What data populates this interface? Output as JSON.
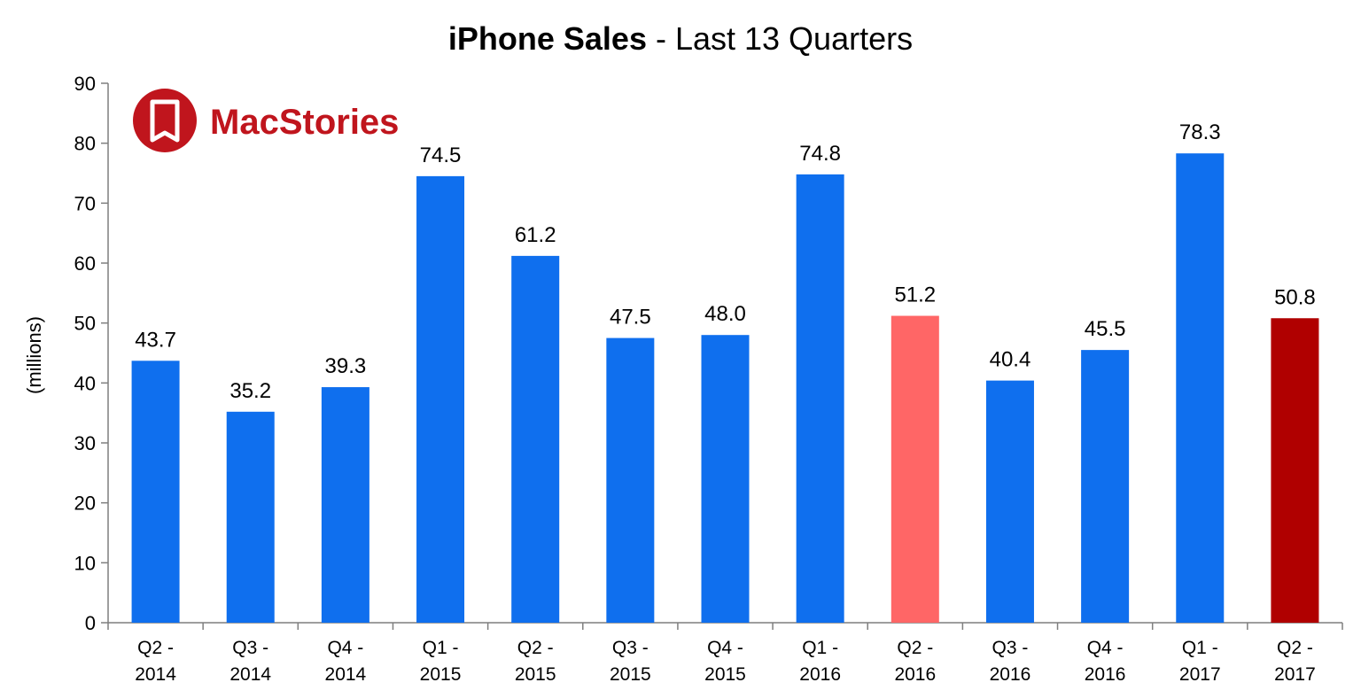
{
  "chart_data": {
    "type": "bar",
    "title_bold": "iPhone Sales",
    "title_rest": " - Last 13 Quarters",
    "ylabel": "(millions)",
    "xlabel": "",
    "ylim": [
      0,
      90
    ],
    "yticks": [
      0,
      10,
      20,
      30,
      40,
      50,
      60,
      70,
      80,
      90
    ],
    "grid": false,
    "categories": [
      [
        "Q2 -",
        "2014"
      ],
      [
        "Q3 -",
        "2014"
      ],
      [
        "Q4 -",
        "2014"
      ],
      [
        "Q1 -",
        "2015"
      ],
      [
        "Q2 -",
        "2015"
      ],
      [
        "Q3 -",
        "2015"
      ],
      [
        "Q4 -",
        "2015"
      ],
      [
        "Q1 -",
        "2016"
      ],
      [
        "Q2 -",
        "2016"
      ],
      [
        "Q3 -",
        "2016"
      ],
      [
        "Q4 -",
        "2016"
      ],
      [
        "Q1 -",
        "2017"
      ],
      [
        "Q2 -",
        "2017"
      ]
    ],
    "values": [
      43.7,
      35.2,
      39.3,
      74.5,
      61.2,
      47.5,
      48.0,
      74.8,
      51.2,
      40.4,
      45.5,
      78.3,
      50.8
    ],
    "value_labels": [
      "43.7",
      "35.2",
      "39.3",
      "74.5",
      "61.2",
      "47.5",
      "48.0",
      "74.8",
      "51.2",
      "40.4",
      "45.5",
      "78.3",
      "50.8"
    ],
    "bar_colors": [
      "#0f6fee",
      "#0f6fee",
      "#0f6fee",
      "#0f6fee",
      "#0f6fee",
      "#0f6fee",
      "#0f6fee",
      "#0f6fee",
      "#ff6666",
      "#0f6fee",
      "#0f6fee",
      "#0f6fee",
      "#b00000"
    ]
  },
  "logo": {
    "text": "MacStories",
    "icon": "bookmark-icon",
    "color": "#c0151d"
  }
}
